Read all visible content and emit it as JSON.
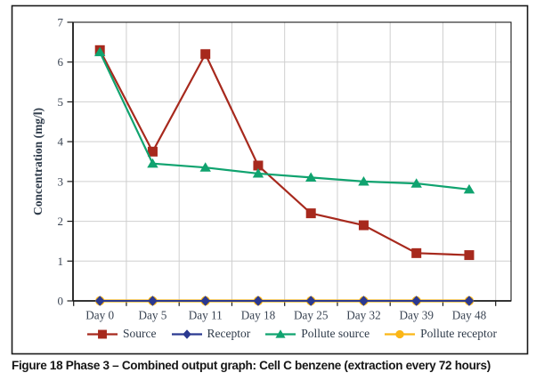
{
  "figure": {
    "caption_label": "Figure 18",
    "caption_text": "Phase 3 – Combined output graph: Cell C benzene (extraction every 72 hours)"
  },
  "chart_data": {
    "type": "line",
    "title": "",
    "xlabel": "",
    "ylabel": "Concentration (mg/l)",
    "ylim": [
      0,
      7
    ],
    "yticks": [
      0,
      1,
      2,
      3,
      4,
      5,
      6,
      7
    ],
    "grid": true,
    "legend_position": "bottom",
    "categories": [
      "Day 0",
      "Day 5",
      "Day 11",
      "Day 18",
      "Day 25",
      "Day 32",
      "Day 39",
      "Day 48"
    ],
    "series": [
      {
        "name": "Source",
        "marker": "square",
        "color": "#A7291D",
        "values": [
          6.3,
          3.75,
          6.2,
          3.4,
          2.2,
          1.9,
          1.2,
          1.15
        ]
      },
      {
        "name": "Receptor",
        "marker": "diamond",
        "color": "#2B3990",
        "values": [
          0,
          0,
          0,
          0,
          0,
          0,
          0,
          0
        ]
      },
      {
        "name": "Pollute source",
        "marker": "triangle",
        "color": "#10A36F",
        "values": [
          6.25,
          3.45,
          3.35,
          3.2,
          3.1,
          3.0,
          2.95,
          2.8
        ]
      },
      {
        "name": "Pollute receptor",
        "marker": "circle",
        "color": "#FBB616",
        "values": [
          0,
          0,
          0,
          0,
          0,
          0,
          0,
          0
        ]
      }
    ]
  },
  "style_colors": {
    "grid": "#CFCFCF",
    "axis": "#1A1A1A",
    "border": "#1A1A1A",
    "tick_text": "#3A4453",
    "axis_title_text": "#2D3A49",
    "legend_text": "#2E3A49",
    "caption_text": "#161616"
  }
}
